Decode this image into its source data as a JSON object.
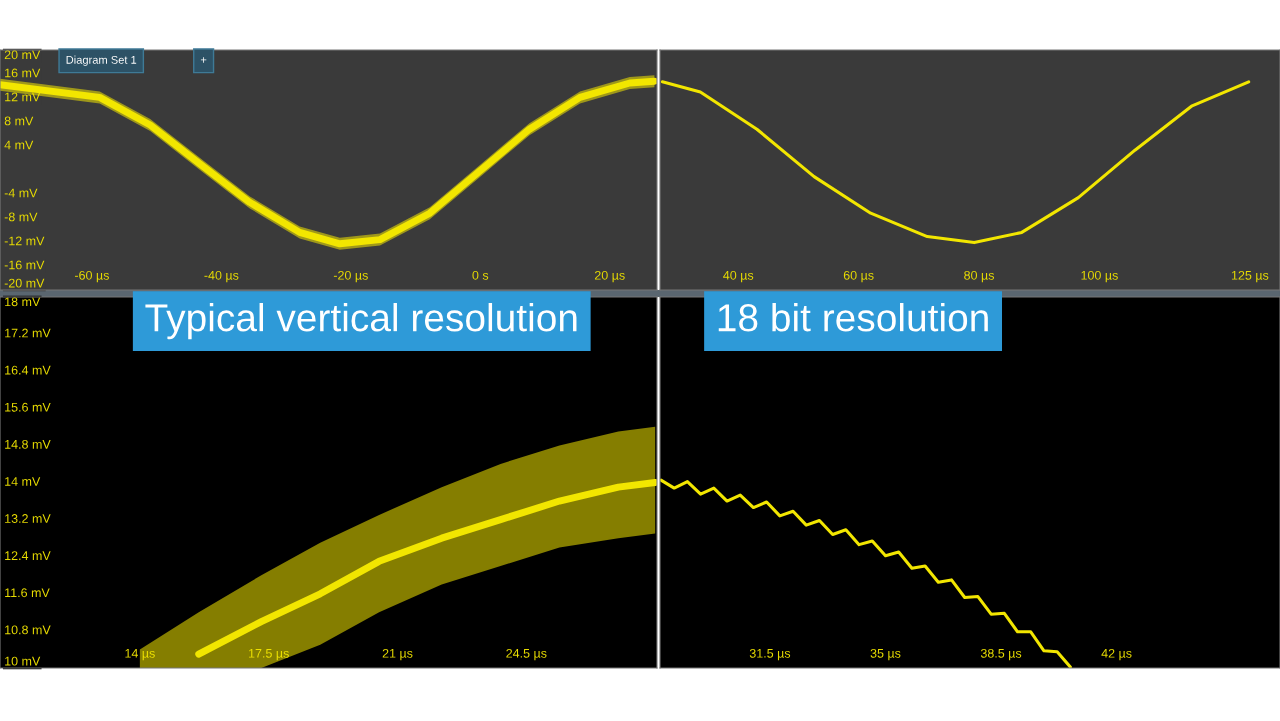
{
  "chart_data": [
    {
      "type": "line",
      "xlim": [
        -74.2,
        27.3
      ],
      "ylim": [
        -20,
        20
      ],
      "xticks": [
        {
          "value": -60,
          "label": "-60 µs"
        },
        {
          "value": -40,
          "label": "-40 µs"
        },
        {
          "value": -20,
          "label": "-20 µs"
        },
        {
          "value": 0,
          "label": "0 s"
        },
        {
          "value": 20,
          "label": "20 µs"
        }
      ],
      "yticks": [
        {
          "value": 20,
          "label": "20 mV"
        },
        {
          "value": 16,
          "label": "16 mV"
        },
        {
          "value": 12,
          "label": "12 mV"
        },
        {
          "value": 8,
          "label": "8 mV"
        },
        {
          "value": 4,
          "label": "4 mV"
        },
        {
          "value": -4,
          "label": "-4 mV"
        },
        {
          "value": -8,
          "label": "-8 mV"
        },
        {
          "value": -12,
          "label": "-12 mV"
        },
        {
          "value": -16,
          "label": "-16 mV"
        },
        {
          "value": -20,
          "label": "-20 mV"
        }
      ],
      "annotations": [
        "Diagram Set 1",
        "+"
      ],
      "series": [
        {
          "color": "#f2e600",
          "x": [
            -74.2,
            -58.8,
            -51.0,
            -43.3,
            -35.6,
            -27.9,
            -21.7,
            -15.5,
            -7.8,
            -0.1,
            7.6,
            15.4,
            23.1,
            26.9
          ],
          "values": [
            14.2,
            12.1,
            7.5,
            1.0,
            -5.4,
            -10.4,
            -12.3,
            -11.6,
            -7.2,
            -0.2,
            6.8,
            12.1,
            14.5,
            14.8
          ],
          "lower": [
            13.2,
            11.1,
            6.5,
            0.0,
            -6.4,
            -11.4,
            -13.3,
            -12.6,
            -8.2,
            -1.2,
            5.8,
            11.1,
            13.5,
            13.8
          ],
          "upper": [
            15.2,
            13.1,
            8.5,
            2.0,
            -4.4,
            -9.4,
            -11.3,
            -10.6,
            -6.2,
            0.8,
            7.8,
            13.1,
            15.5,
            15.8
          ]
        }
      ]
    },
    {
      "type": "line",
      "xlim": [
        27,
        130
      ],
      "ylim": [
        -20,
        20
      ],
      "tick_labels": "x",
      "xticks": [
        {
          "value": 40,
          "label": "40 µs"
        },
        {
          "value": 60,
          "label": "60 µs"
        },
        {
          "value": 80,
          "label": "80 µs"
        },
        {
          "value": 100,
          "label": "100 µs"
        },
        {
          "value": 125,
          "label": "125 µs"
        }
      ],
      "series": [
        {
          "color": "#f2e600",
          "x": [
            27.4,
            33.7,
            43.1,
            52.6,
            62.0,
            71.4,
            79.2,
            87.1,
            96.5,
            105.9,
            115.4,
            124.8
          ],
          "values": [
            14.7,
            13.0,
            6.8,
            -1.1,
            -7.2,
            -11.1,
            -12.1,
            -10.4,
            -4.6,
            3.3,
            10.7,
            14.7
          ]
        }
      ]
    },
    {
      "type": "line",
      "xlim": [
        10.2,
        28.05
      ],
      "ylim": [
        10,
        18
      ],
      "xticks": [
        {
          "value": 14,
          "label": "14 µs"
        },
        {
          "value": 17.5,
          "label": "17.5 µs"
        },
        {
          "value": 21,
          "label": "21 µs"
        },
        {
          "value": 24.5,
          "label": "24.5 µs"
        }
      ],
      "yticks": [
        {
          "value": 18,
          "label": "18 mV"
        },
        {
          "value": 17.2,
          "label": "17.2 mV"
        },
        {
          "value": 16.4,
          "label": "16.4 mV"
        },
        {
          "value": 15.6,
          "label": "15.6 mV"
        },
        {
          "value": 14.8,
          "label": "14.8 mV"
        },
        {
          "value": 14,
          "label": "14 mV"
        },
        {
          "value": 13.2,
          "label": "13.2 mV"
        },
        {
          "value": 12.4,
          "label": "12.4 mV"
        },
        {
          "value": 11.6,
          "label": "11.6 mV"
        },
        {
          "value": 10.8,
          "label": "10.8 mV"
        },
        {
          "value": 10,
          "label": "10 mV"
        }
      ],
      "annotations": [
        "Typical vertical resolution"
      ],
      "series": [
        {
          "color": "#f2e600",
          "x": [
            14.0,
            15.6,
            17.3,
            18.9,
            20.5,
            22.2,
            23.8,
            25.4,
            27.0,
            28.0
          ],
          "values": [
            null,
            10.3,
            11.0,
            11.6,
            12.3,
            12.8,
            13.2,
            13.6,
            13.9,
            14.0
          ],
          "lower": [
            10.0,
            10.0,
            10.0,
            10.5,
            11.2,
            11.8,
            12.2,
            12.6,
            12.8,
            12.9
          ],
          "upper": [
            10.4,
            11.2,
            12.0,
            12.7,
            13.3,
            13.9,
            14.4,
            14.8,
            15.1,
            15.2
          ]
        }
      ]
    },
    {
      "type": "line",
      "xlim": [
        28.17,
        46.95
      ],
      "ylim": [
        10,
        18
      ],
      "tick_labels": "x",
      "xticks": [
        {
          "value": 31.5,
          "label": "31.5 µs"
        },
        {
          "value": 35,
          "label": "35 µs"
        },
        {
          "value": 38.5,
          "label": "38.5 µs"
        },
        {
          "value": 42,
          "label": "42 µs"
        }
      ],
      "annotations": [
        "18 bit resolution"
      ],
      "series": [
        {
          "color": "#f2e600",
          "x": [
            28.2,
            28.6,
            29.0,
            29.4,
            29.8,
            30.2,
            30.6,
            31.0,
            31.4,
            31.8,
            32.2,
            32.6,
            33.0,
            33.4,
            33.8,
            34.2,
            34.6,
            35.0,
            35.4,
            35.8,
            36.2,
            36.6,
            37.0,
            37.4,
            37.8,
            38.2,
            38.6,
            39.0,
            39.4,
            39.8,
            40.2,
            40.6
          ],
          "values": [
            14.05,
            13.88,
            14.02,
            13.75,
            13.88,
            13.6,
            13.73,
            13.46,
            13.58,
            13.28,
            13.38,
            13.08,
            13.18,
            12.88,
            12.98,
            12.66,
            12.74,
            12.42,
            12.5,
            12.15,
            12.2,
            11.85,
            11.9,
            11.52,
            11.54,
            11.16,
            11.18,
            10.78,
            10.78,
            10.37,
            10.35,
            10.02
          ]
        }
      ]
    }
  ]
}
